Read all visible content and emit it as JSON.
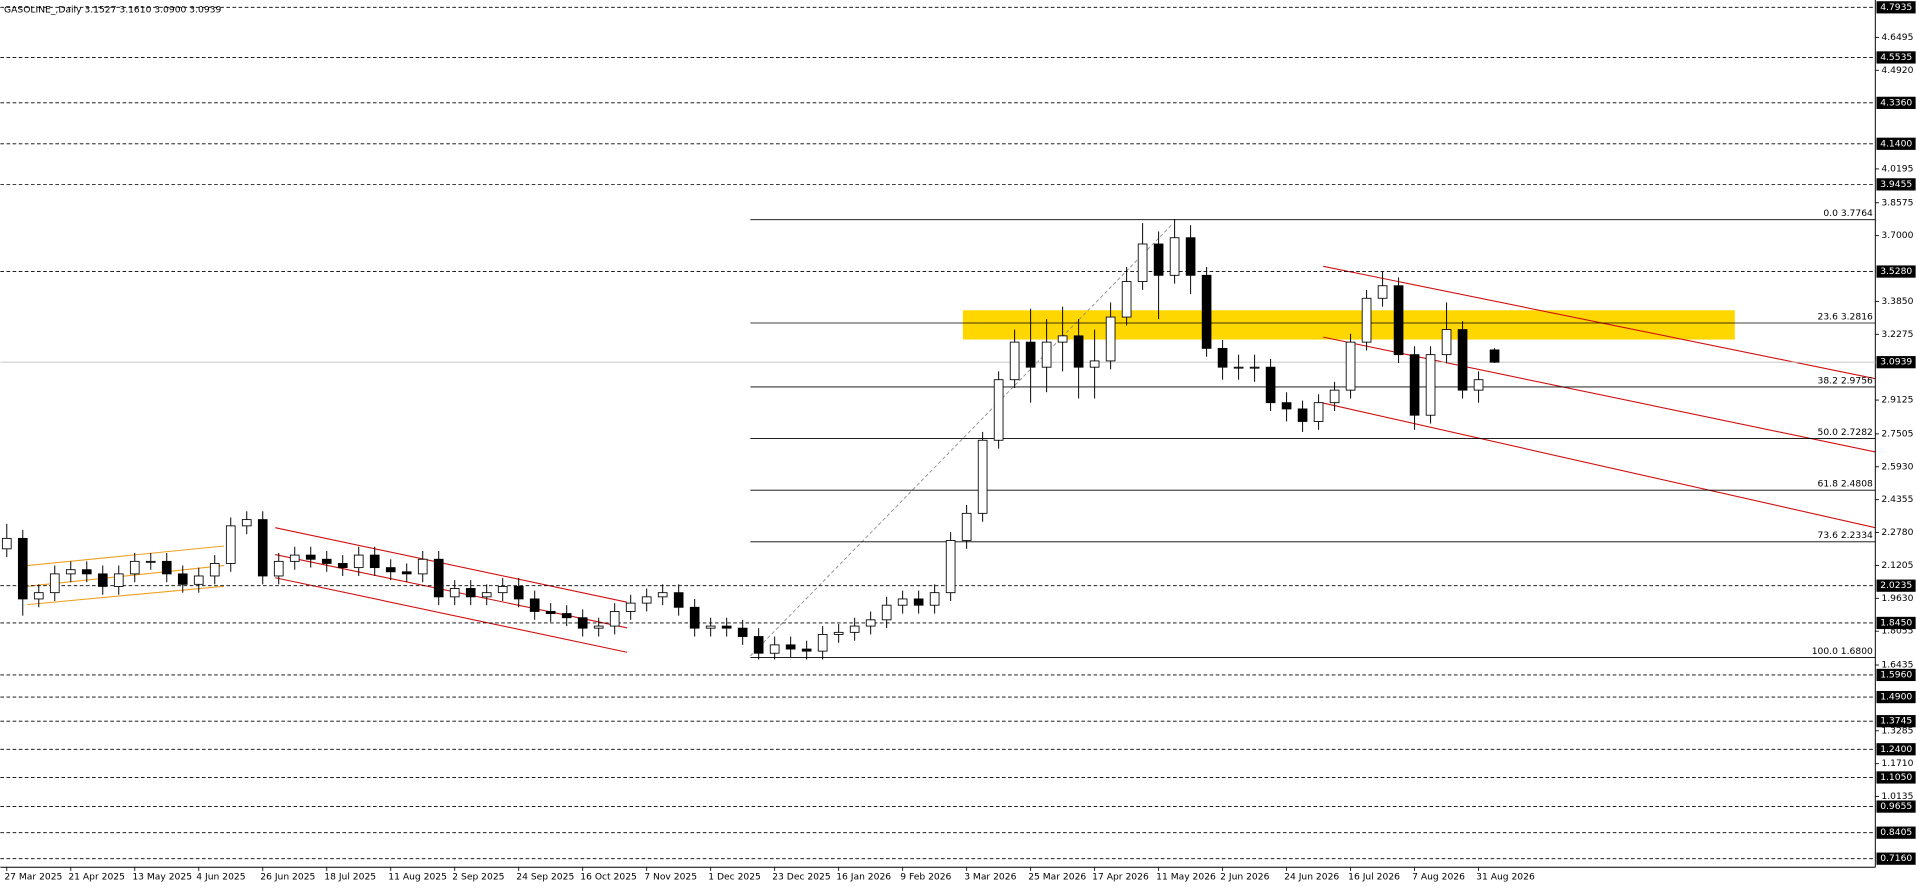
{
  "chart_data": {
    "type": "candlestick",
    "title": "GASOLINE_,Daily  3.1527 3.1610 3.0900 3.0939",
    "up_color": "#ffffff",
    "down_color": "#000000",
    "x": [
      0,
      1,
      2,
      3,
      4,
      5,
      6,
      7,
      8,
      9,
      10,
      11,
      12,
      13,
      14,
      15,
      16,
      17,
      18,
      19,
      20,
      21,
      22,
      23,
      24,
      25,
      26,
      27,
      28,
      29,
      30,
      31,
      32,
      33,
      34,
      35,
      36,
      37,
      38,
      39,
      40,
      41,
      42,
      43,
      44,
      45,
      46,
      47,
      48,
      49,
      50,
      51,
      52,
      53,
      54,
      55,
      56,
      57,
      58,
      59,
      60,
      61,
      62,
      63,
      64,
      65,
      66,
      67,
      68,
      69,
      70,
      71,
      72,
      73,
      74,
      75,
      76,
      77,
      78,
      79,
      80,
      81,
      82,
      83,
      84,
      85,
      86,
      87,
      88,
      89,
      90,
      91,
      92,
      93
    ],
    "open": [
      2.2,
      2.25,
      1.96,
      1.99,
      2.08,
      2.1,
      2.08,
      2.02,
      2.08,
      2.14,
      2.14,
      2.08,
      2.03,
      2.07,
      2.13,
      2.31,
      2.34,
      2.07,
      2.14,
      2.17,
      2.15,
      2.13,
      2.11,
      2.17,
      2.11,
      2.09,
      2.08,
      2.15,
      1.97,
      2.01,
      1.97,
      1.99,
      2.02,
      1.96,
      1.9,
      1.89,
      1.87,
      1.82,
      1.83,
      1.9,
      1.94,
      1.97,
      1.99,
      1.92,
      1.82,
      1.83,
      1.82,
      1.78,
      1.7,
      1.74,
      1.72,
      1.71,
      1.79,
      1.8,
      1.83,
      1.86,
      1.93,
      1.96,
      1.93,
      1.99,
      2.24,
      2.37,
      2.72,
      3.01,
      3.19,
      3.07,
      3.19,
      3.22,
      3.07,
      3.1,
      3.31,
      3.48,
      3.66,
      3.51,
      3.69,
      3.51,
      3.16,
      3.07,
      3.07,
      3.07,
      2.9,
      2.87,
      2.81,
      2.9,
      2.96,
      3.19,
      3.4,
      3.46,
      3.13,
      2.84,
      3.13,
      3.25,
      2.96,
      3.1527
    ],
    "high": [
      2.32,
      2.29,
      2.03,
      2.12,
      2.14,
      2.14,
      2.12,
      2.12,
      2.18,
      2.18,
      2.18,
      2.12,
      2.11,
      2.17,
      2.35,
      2.38,
      2.38,
      2.18,
      2.21,
      2.21,
      2.19,
      2.17,
      2.21,
      2.21,
      2.15,
      2.13,
      2.19,
      2.19,
      2.05,
      2.05,
      2.03,
      2.06,
      2.06,
      2.0,
      1.94,
      1.93,
      1.91,
      1.87,
      1.94,
      1.98,
      2.01,
      2.03,
      2.03,
      1.96,
      1.87,
      1.87,
      1.86,
      1.82,
      1.78,
      1.78,
      1.76,
      1.83,
      1.84,
      1.87,
      1.9,
      1.97,
      2.0,
      2.0,
      2.03,
      2.28,
      2.41,
      2.76,
      3.05,
      3.25,
      3.35,
      3.3,
      3.36,
      3.3,
      3.25,
      3.38,
      3.55,
      3.76,
      3.72,
      3.78,
      3.75,
      3.55,
      3.2,
      3.13,
      3.13,
      3.11,
      2.95,
      2.91,
      2.94,
      3.0,
      3.23,
      3.44,
      3.53,
      3.5,
      3.17,
      3.17,
      3.38,
      3.29,
      3.05,
      3.161
    ],
    "low": [
      2.16,
      1.88,
      1.92,
      1.95,
      2.04,
      2.04,
      1.98,
      1.98,
      2.04,
      2.1,
      2.04,
      1.99,
      1.99,
      2.03,
      2.09,
      2.27,
      2.03,
      2.03,
      2.1,
      2.11,
      2.09,
      2.07,
      2.07,
      2.07,
      2.05,
      2.04,
      2.04,
      1.93,
      1.93,
      1.93,
      1.93,
      1.95,
      1.92,
      1.86,
      1.85,
      1.83,
      1.78,
      1.78,
      1.79,
      1.86,
      1.9,
      1.93,
      1.88,
      1.78,
      1.78,
      1.78,
      1.74,
      1.67,
      1.67,
      1.68,
      1.67,
      1.67,
      1.75,
      1.76,
      1.79,
      1.82,
      1.89,
      1.89,
      1.89,
      1.95,
      2.2,
      2.33,
      2.68,
      2.97,
      2.9,
      2.95,
      3.05,
      2.92,
      2.92,
      3.06,
      3.27,
      3.44,
      3.3,
      3.47,
      3.42,
      3.12,
      3.01,
      3.01,
      3.0,
      2.86,
      2.81,
      2.76,
      2.77,
      2.86,
      2.92,
      3.15,
      3.36,
      3.09,
      2.77,
      2.8,
      3.09,
      2.92,
      2.9,
      3.09
    ],
    "close": [
      2.25,
      1.96,
      1.99,
      2.08,
      2.1,
      2.08,
      2.02,
      2.08,
      2.14,
      2.14,
      2.08,
      2.03,
      2.07,
      2.13,
      2.31,
      2.34,
      2.07,
      2.14,
      2.17,
      2.15,
      2.13,
      2.11,
      2.17,
      2.11,
      2.09,
      2.08,
      2.15,
      1.97,
      2.01,
      1.97,
      1.99,
      2.02,
      1.96,
      1.9,
      1.89,
      1.87,
      1.82,
      1.83,
      1.9,
      1.94,
      1.97,
      1.99,
      1.92,
      1.82,
      1.83,
      1.82,
      1.78,
      1.7,
      1.74,
      1.72,
      1.71,
      1.79,
      1.8,
      1.83,
      1.86,
      1.93,
      1.96,
      1.93,
      1.99,
      2.24,
      2.37,
      2.72,
      3.01,
      3.19,
      3.07,
      3.19,
      3.22,
      3.07,
      3.1,
      3.31,
      3.48,
      3.66,
      3.51,
      3.69,
      3.51,
      3.16,
      3.07,
      3.07,
      3.07,
      2.9,
      2.87,
      2.81,
      2.9,
      2.96,
      3.19,
      3.4,
      3.46,
      3.13,
      2.84,
      3.13,
      3.25,
      2.96,
      3.01,
      3.0939
    ],
    "xlim": [
      -0.4,
      116.8
    ],
    "xticks": [
      {
        "value": 0,
        "label": "27 Mar 2025"
      },
      {
        "value": 4,
        "label": "21 Apr 2025"
      },
      {
        "value": 8,
        "label": "13 May 2025"
      },
      {
        "value": 12,
        "label": "4 Jun 2025"
      },
      {
        "value": 16,
        "label": "26 Jun 2025"
      },
      {
        "value": 20,
        "label": "18 Jul 2025"
      },
      {
        "value": 24,
        "label": "11 Aug 2025"
      },
      {
        "value": 28,
        "label": "2 Sep 2025"
      },
      {
        "value": 32,
        "label": "24 Sep 2025"
      },
      {
        "value": 36,
        "label": "16 Oct 2025"
      },
      {
        "value": 40,
        "label": "7 Nov 2025"
      },
      {
        "value": 44,
        "label": "1 Dec 2025"
      },
      {
        "value": 48,
        "label": "23 Dec 2025"
      },
      {
        "value": 52,
        "label": "16 Jan 2026"
      },
      {
        "value": 56,
        "label": "9 Feb 2026"
      },
      {
        "value": 60,
        "label": "3 Mar 2026"
      },
      {
        "value": 64,
        "label": "25 Mar 2026"
      },
      {
        "value": 68,
        "label": "17 Apr 2026"
      },
      {
        "value": 72,
        "label": "11 May 2026"
      },
      {
        "value": 76,
        "label": "2 Jun 2026"
      },
      {
        "value": 80,
        "label": "24 Jun 2026"
      },
      {
        "value": 84,
        "label": "16 Jul 2026"
      },
      {
        "value": 88,
        "label": "7 Aug 2026"
      },
      {
        "value": 92,
        "label": "31 Aug 2026"
      }
    ],
    "ylim": [
      0.675,
      4.8286
    ],
    "yticks": [
      4.6495,
      {
        "value": 4.492,
        "label": "4.4920"
      },
      4.0195,
      3.8575,
      {
        "value": 3.7,
        "label": "3.7000"
      },
      {
        "value": 3.385,
        "label": "3.3850"
      },
      3.2275,
      2.9125,
      2.7505,
      {
        "value": 2.593,
        "label": "2.5930"
      },
      2.4355,
      {
        "value": 2.278,
        "label": "2.2780"
      },
      2.1205,
      {
        "value": 1.963,
        "label": "1.9630"
      },
      1.8055,
      1.6435,
      1.3285,
      {
        "value": 1.171,
        "label": "1.1710"
      },
      1.0135
    ],
    "levels": [
      4.7935,
      4.5535,
      {
        "value": 4.336,
        "label": "4.3360"
      },
      {
        "value": 4.14,
        "label": "4.1400"
      },
      3.9455,
      {
        "value": 3.528,
        "label": "3.5280"
      },
      2.0235,
      {
        "value": 1.845,
        "label": "1.8450"
      },
      {
        "value": 1.596,
        "label": "1.5960"
      },
      {
        "value": 1.49,
        "label": "1.4900"
      },
      1.3745,
      {
        "value": 1.24,
        "label": "1.2400"
      },
      {
        "value": 1.105,
        "label": "1.1050"
      },
      0.9655,
      0.8405,
      {
        "value": 0.716,
        "label": "0.7160"
      }
    ],
    "last_price": 3.0939,
    "fib_levels": [
      {
        "value": 3.7764,
        "label": "0.0 3.7764"
      },
      {
        "value": 3.2816,
        "label": "23.6 3.2816"
      },
      {
        "value": 2.9756,
        "label": "38.2 2.9756"
      },
      {
        "value": 2.7282,
        "label": "50.0 2.7282"
      },
      {
        "value": 2.4808,
        "label": "61.8 2.4808"
      },
      {
        "value": 2.2334,
        "label": "73.6 2.2334"
      },
      {
        "value": 1.68,
        "label": "100.0 1.6800"
      }
    ]
  }
}
